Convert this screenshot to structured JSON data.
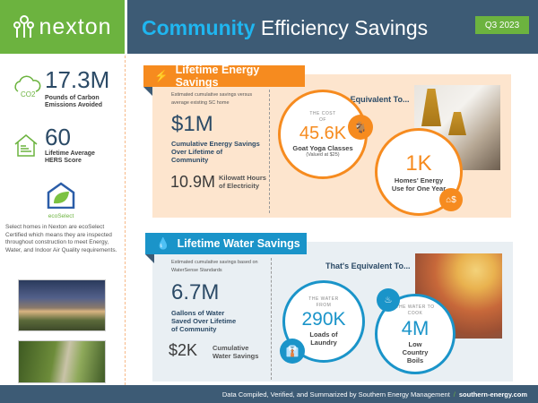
{
  "brand": {
    "logo_text": "nexton",
    "accent_green": "#6cb33f",
    "navy": "#3d5b75"
  },
  "header": {
    "title_highlight": "Community",
    "title_rest": "Efficiency Savings",
    "period": "Q3 2023"
  },
  "sidebar": {
    "carbon": {
      "value": "17.3M",
      "label": "Pounds of Carbon Emissions Avoided",
      "icon": "co2-cloud-icon"
    },
    "hers": {
      "value": "60",
      "label": "Lifetime Average HERS Score",
      "icon": "house-icon"
    },
    "eco": {
      "logo_text": "ecoSelect",
      "description": "Select homes in Nexton are ecoSelect Certified which means they are inspected throughout construction to meet Energy, Water, and Indoor Air Quality requirements."
    }
  },
  "energy": {
    "title": "Lifetime Energy Savings",
    "color": "#f68b1f",
    "subtitle": "Estimated cumulative savings versus average existing SC home",
    "main_value": "$1M",
    "main_label": "Cumulative Energy Savings Over Lifetime of Community",
    "kwh_value": "10.9M",
    "kwh_label": "Kilowatt Hours of Electricity",
    "equiv_title": "That's Equivalent To...",
    "eq1": {
      "small": "THE COST OF",
      "value": "45.6K",
      "label": "Goat Yoga Classes",
      "note": "(Valued at $25)",
      "icon": "goat-icon"
    },
    "eq2": {
      "value": "1K",
      "label": "Homes' Energy Use for One Year",
      "icon": "house-dollar-icon"
    }
  },
  "water": {
    "title": "Lifetime Water Savings",
    "color": "#1a94c9",
    "subtitle": "Estimated cumulative savings based on WaterSense Standards",
    "main_value": "6.7M",
    "main_label": "Gallons of Water Saved Over Lifetime of Community",
    "money_value": "$2K",
    "money_label": "Cumulative Water Savings",
    "equiv_title": "That's Equivalent To...",
    "eq1": {
      "small": "THE WATER FROM",
      "value": "290K",
      "label": "Loads of Laundry",
      "icon": "shirt-icon"
    },
    "eq2": {
      "small": "THE WATER TO COOK",
      "value": "4M",
      "label": "Low Country Boils",
      "icon": "pot-icon"
    }
  },
  "footer": {
    "credit": "Data Compiled, Verified, and Summarized by Southern Energy Management",
    "sep": "/",
    "link": "southern-energy.com"
  }
}
